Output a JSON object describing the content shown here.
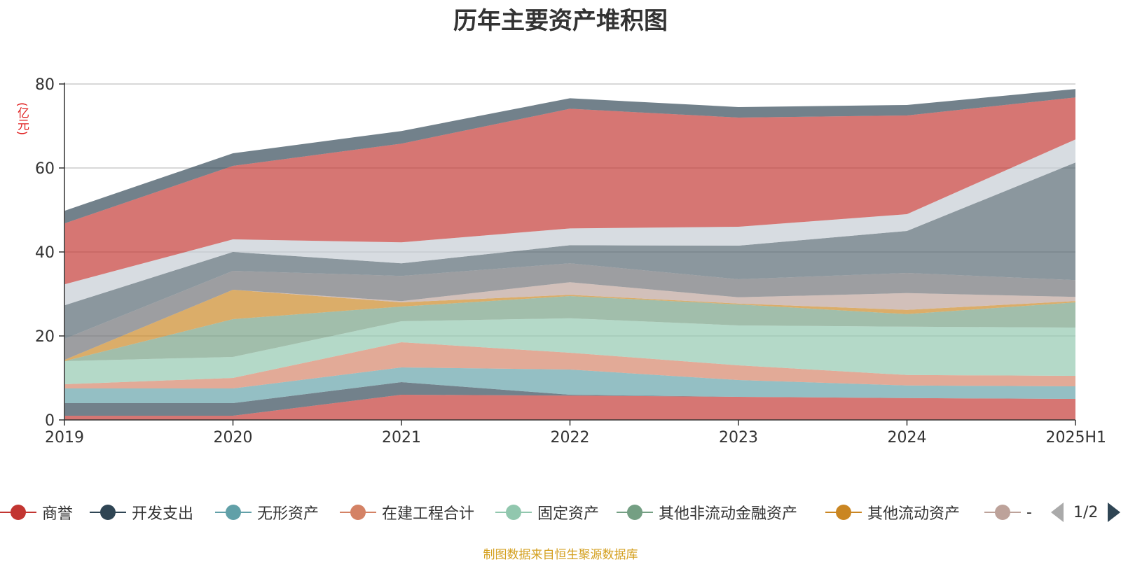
{
  "chart_data": {
    "type": "area",
    "stacked": true,
    "title": "历年主要资产堆积图",
    "unit": "(亿元)",
    "categories": [
      "2019",
      "2020",
      "2021",
      "2022",
      "2023",
      "2024",
      "2025H1"
    ],
    "ylim": [
      0,
      80
    ],
    "yticks": [
      0,
      20,
      40,
      60,
      80
    ],
    "grid": true,
    "series": [
      {
        "name": "商誉",
        "color": "#c23531",
        "values": [
          1.0,
          1.0,
          6.0,
          5.8,
          5.5,
          5.2,
          5.0
        ]
      },
      {
        "name": "开发支出",
        "color": "#2f4554",
        "values": [
          3.0,
          3.0,
          3.0,
          0.2,
          0.0,
          0.0,
          0.0
        ]
      },
      {
        "name": "无形资产",
        "color": "#61a0a8",
        "values": [
          3.5,
          3.5,
          3.5,
          6.0,
          4.0,
          3.0,
          3.0
        ]
      },
      {
        "name": "在建工程合计",
        "color": "#d48265",
        "values": [
          1.0,
          2.5,
          6.0,
          4.0,
          3.5,
          2.5,
          2.5
        ]
      },
      {
        "name": "固定资产",
        "color": "#91c7ae",
        "values": [
          5.5,
          5.0,
          5.0,
          8.2,
          9.5,
          11.5,
          11.5
        ]
      },
      {
        "name": "其他非流动金融资产",
        "color": "#749f83",
        "values": [
          0.0,
          9.0,
          3.5,
          5.3,
          5.0,
          3.0,
          6.0
        ]
      },
      {
        "name": "其他流动资产",
        "color": "#ca8622",
        "values": [
          0.3,
          7.0,
          1.0,
          0.3,
          0.2,
          1.0,
          0.3
        ]
      },
      {
        "name": "-",
        "color": "#bda29a",
        "values": [
          0.0,
          0.0,
          0.3,
          3.0,
          1.5,
          4.0,
          1.0
        ]
      },
      {
        "name": "",
        "color": "#6e7074",
        "values": [
          5.0,
          4.5,
          6.0,
          4.5,
          4.3,
          4.8,
          4.0
        ]
      },
      {
        "name": "",
        "color": "#546570",
        "values": [
          8.0,
          4.5,
          3.0,
          4.3,
          8.0,
          10.0,
          28.0
        ]
      },
      {
        "name": "",
        "color": "#c4ccd3",
        "values": [
          5.0,
          3.0,
          5.0,
          4.0,
          4.5,
          4.0,
          5.5
        ]
      },
      {
        "name": "",
        "color": "#c23531",
        "values": [
          14.5,
          17.5,
          23.5,
          28.5,
          26.0,
          23.5,
          10.0
        ]
      },
      {
        "name": "",
        "color": "#2f4554",
        "values": [
          3.0,
          3.0,
          3.0,
          2.5,
          2.5,
          2.5,
          2.0
        ]
      }
    ],
    "legend_position": "bottom",
    "legend_page": "1/2",
    "source": "制图数据来自恒生聚源数据库"
  }
}
